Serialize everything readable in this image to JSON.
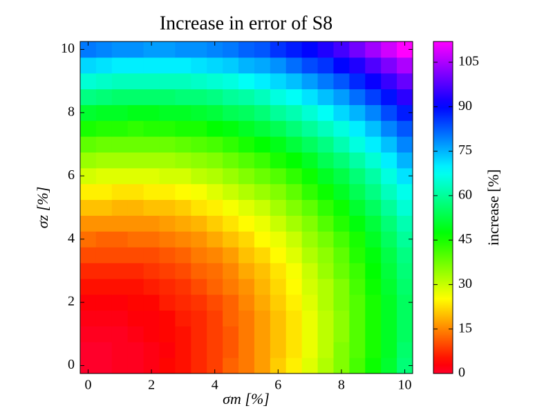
{
  "chart_data": {
    "type": "heatmap",
    "title": "Increase in error of S8",
    "xlabel": "σm [%]",
    "ylabel": "σz [%]",
    "colorbar_label": "increase [%]",
    "cmap": "gist_rainbow",
    "clim": [
      0,
      112
    ],
    "cticks": [
      0,
      15,
      30,
      45,
      60,
      75,
      90,
      105
    ],
    "xlim": [
      -0.25,
      10.25
    ],
    "ylim": [
      -0.25,
      10.25
    ],
    "xticks": [
      0,
      2,
      4,
      6,
      8,
      10
    ],
    "yticks": [
      0,
      2,
      4,
      6,
      8,
      10
    ],
    "x": [
      0,
      0.5,
      1,
      1.5,
      2,
      2.5,
      3,
      3.5,
      4,
      4.5,
      5,
      5.5,
      6,
      6.5,
      7,
      7.5,
      8,
      8.5,
      9,
      9.5,
      10
    ],
    "y": [
      0,
      0.5,
      1,
      1.5,
      2,
      2.5,
      3,
      3.5,
      4,
      4.5,
      5,
      5.5,
      6,
      6.5,
      7,
      7.5,
      8,
      8.5,
      9,
      9.5,
      10
    ],
    "z": [
      [
        0,
        0,
        1,
        1,
        2,
        4,
        5,
        7,
        9,
        12,
        14,
        17,
        21,
        24,
        28,
        32,
        36,
        41,
        46,
        51,
        57
      ],
      [
        0,
        0,
        1,
        1,
        2,
        3,
        5,
        7,
        9,
        11,
        14,
        17,
        20,
        23,
        27,
        31,
        36,
        40,
        45,
        50,
        56
      ],
      [
        1,
        1,
        1,
        2,
        3,
        4,
        5,
        7,
        9,
        11,
        14,
        17,
        20,
        23,
        27,
        31,
        35,
        40,
        45,
        50,
        55
      ],
      [
        2,
        2,
        2,
        3,
        3,
        4,
        6,
        7,
        9,
        12,
        14,
        17,
        20,
        23,
        27,
        31,
        35,
        40,
        45,
        50,
        55
      ],
      [
        3,
        3,
        3,
        4,
        4,
        6,
        7,
        8,
        10,
        12,
        15,
        18,
        21,
        24,
        28,
        32,
        36,
        40,
        45,
        50,
        55
      ],
      [
        5,
        5,
        5,
        5,
        6,
        7,
        8,
        10,
        12,
        14,
        16,
        19,
        22,
        25,
        29,
        32,
        36,
        41,
        46,
        51,
        56
      ],
      [
        7,
        7,
        7,
        7,
        8,
        9,
        10,
        12,
        13,
        15,
        18,
        20,
        23,
        26,
        30,
        34,
        38,
        42,
        47,
        52,
        57
      ],
      [
        10,
        10,
        10,
        10,
        10,
        11,
        12,
        14,
        15,
        17,
        20,
        22,
        25,
        28,
        32,
        35,
        39,
        44,
        48,
        53,
        58
      ],
      [
        13,
        12,
        12,
        13,
        13,
        14,
        15,
        16,
        18,
        20,
        22,
        25,
        27,
        30,
        34,
        37,
        41,
        45,
        50,
        55,
        60
      ],
      [
        16,
        16,
        16,
        16,
        16,
        17,
        18,
        19,
        21,
        23,
        25,
        27,
        30,
        33,
        36,
        40,
        44,
        48,
        52,
        57,
        62
      ],
      [
        20,
        20,
        19,
        19,
        20,
        20,
        21,
        23,
        24,
        26,
        28,
        30,
        33,
        36,
        39,
        43,
        46,
        51,
        55,
        60,
        65
      ],
      [
        24,
        24,
        23,
        23,
        24,
        24,
        25,
        26,
        28,
        30,
        32,
        34,
        36,
        39,
        43,
        46,
        50,
        54,
        58,
        63,
        67
      ],
      [
        29,
        28,
        28,
        28,
        28,
        29,
        29,
        31,
        32,
        34,
        36,
        38,
        40,
        43,
        46,
        50,
        53,
        57,
        61,
        66,
        71
      ],
      [
        34,
        33,
        33,
        33,
        33,
        33,
        34,
        35,
        36,
        38,
        40,
        42,
        45,
        47,
        50,
        54,
        57,
        61,
        65,
        70,
        75
      ],
      [
        39,
        38,
        38,
        38,
        38,
        38,
        39,
        40,
        41,
        43,
        45,
        47,
        49,
        52,
        55,
        58,
        62,
        66,
        70,
        74,
        79
      ],
      [
        45,
        44,
        44,
        43,
        44,
        44,
        45,
        45,
        47,
        48,
        50,
        52,
        54,
        57,
        60,
        63,
        66,
        70,
        74,
        79,
        83
      ],
      [
        51,
        50,
        50,
        49,
        49,
        50,
        50,
        51,
        52,
        54,
        55,
        57,
        60,
        62,
        65,
        68,
        72,
        75,
        79,
        84,
        88
      ],
      [
        58,
        57,
        56,
        56,
        56,
        56,
        57,
        57,
        58,
        60,
        61,
        63,
        66,
        68,
        71,
        74,
        77,
        81,
        85,
        89,
        94
      ],
      [
        65,
        64,
        63,
        63,
        63,
        63,
        63,
        64,
        65,
        66,
        68,
        70,
        72,
        74,
        77,
        80,
        83,
        87,
        91,
        95,
        99
      ],
      [
        72,
        71,
        70,
        70,
        70,
        70,
        70,
        71,
        72,
        73,
        75,
        76,
        78,
        81,
        84,
        86,
        90,
        93,
        97,
        101,
        105
      ],
      [
        80,
        79,
        78,
        78,
        77,
        77,
        78,
        78,
        79,
        80,
        82,
        83,
        86,
        88,
        90,
        93,
        96,
        100,
        104,
        108,
        112
      ]
    ]
  }
}
